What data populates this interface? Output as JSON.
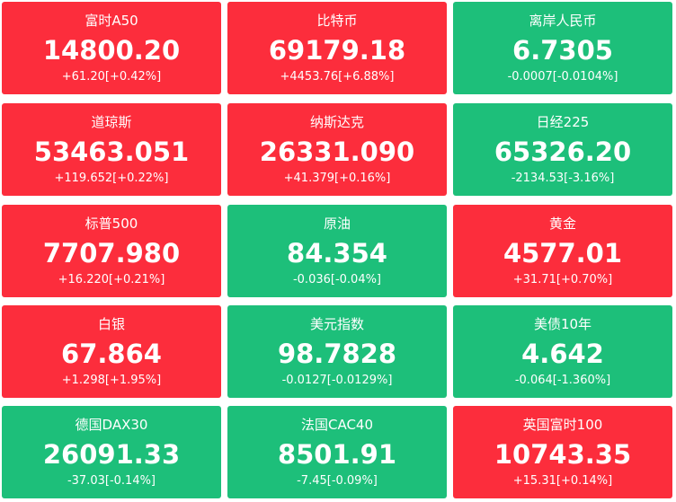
{
  "tiles": [
    {
      "name": "富时A50",
      "price": "14800.20",
      "change": "+61.20[+0.42%]",
      "color": "#fc2d3c"
    },
    {
      "name": "比特币",
      "price": "69179.18",
      "change": "+4453.76[+6.88%]",
      "color": "#fc2d3c"
    },
    {
      "name": "离岸人民币",
      "price": "6.7305",
      "change": "-0.0007[-0.0104%]",
      "color": "#1dbf7a"
    },
    {
      "name": "道琼斯",
      "price": "53463.051",
      "change": "+119.652[+0.22%]",
      "color": "#fc2d3c"
    },
    {
      "name": "纳斯达克",
      "price": "26331.090",
      "change": "+41.379[+0.16%]",
      "color": "#fc2d3c"
    },
    {
      "name": "日经225",
      "price": "65326.20",
      "change": "-2134.53[-3.16%]",
      "color": "#1dbf7a"
    },
    {
      "name": "标普500",
      "price": "7707.980",
      "change": "+16.220[+0.21%]",
      "color": "#fc2d3c"
    },
    {
      "name": "原油",
      "price": "84.354",
      "change": "-0.036[-0.04%]",
      "color": "#1dbf7a"
    },
    {
      "name": "黄金",
      "price": "4577.01",
      "change": "+31.71[+0.70%]",
      "color": "#fc2d3c"
    },
    {
      "name": "白银",
      "price": "67.864",
      "change": "+1.298[+1.95%]",
      "color": "#fc2d3c"
    },
    {
      "name": "美元指数",
      "price": "98.7828",
      "change": "-0.0127[-0.0129%]",
      "color": "#1dbf7a"
    },
    {
      "name": "美债10年",
      "price": "4.642",
      "change": "-0.064[-1.360%]",
      "color": "#1dbf7a"
    },
    {
      "name": "德国DAX30",
      "price": "26091.33",
      "change": "-37.03[-0.14%]",
      "color": "#1dbf7a"
    },
    {
      "name": "法国CAC40",
      "price": "8501.91",
      "change": "-7.45[-0.09%]",
      "color": "#1dbf7a"
    },
    {
      "name": "英国富时100",
      "price": "10743.35",
      "change": "+15.31[+0.14%]",
      "color": "#fc2d3c"
    }
  ]
}
